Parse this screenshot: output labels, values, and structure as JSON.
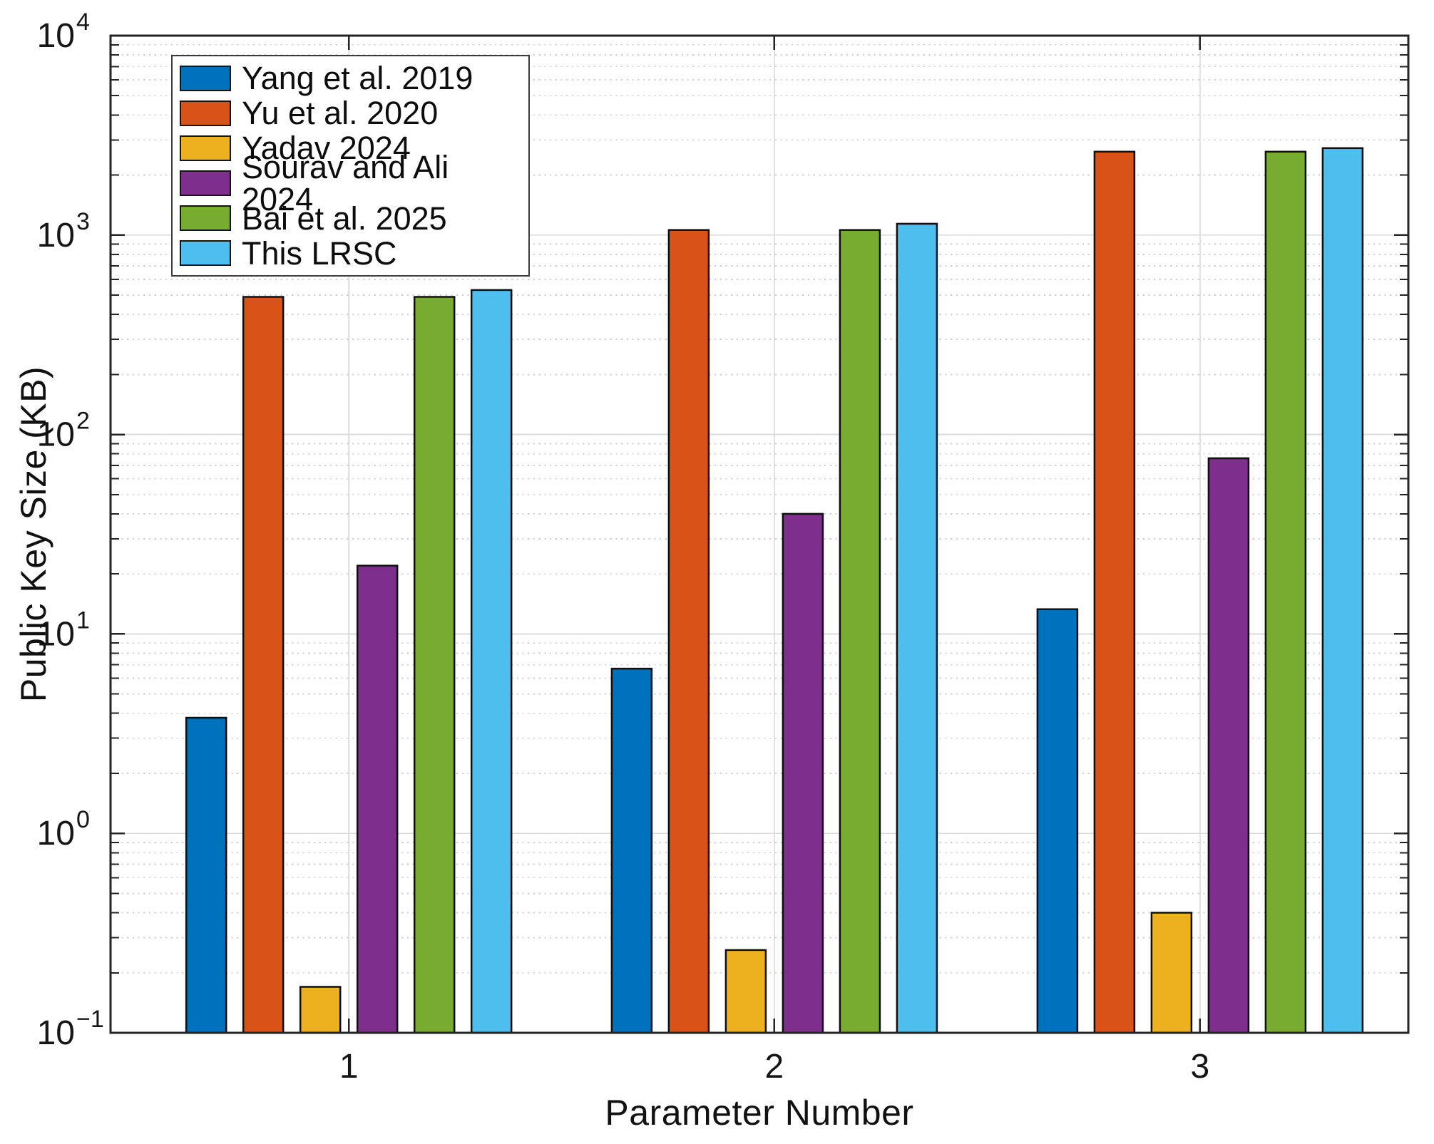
{
  "chart_data": {
    "type": "bar",
    "title": "",
    "xlabel": "Parameter Number",
    "ylabel": "Public Key Size (KB)",
    "categories": [
      "1",
      "2",
      "3"
    ],
    "y_scale": "log",
    "ylim": [
      0.1,
      10000
    ],
    "y_tick_exponents": [
      -1,
      0,
      1,
      2,
      3,
      4
    ],
    "grid": {
      "major": true,
      "minor_dotted": true,
      "x_gridlines_at_groups": true
    },
    "legend_position": "upper-left",
    "legend_entries": [
      "Yang et al. 2019",
      "Yu et al. 2020",
      "Yadav 2024",
      "Sourav and Ali 2024",
      "Bai et al. 2025",
      "This LRSC"
    ],
    "series": [
      {
        "name": "Yang et al. 2019",
        "color": "#0072BD",
        "values": [
          3.8,
          6.7,
          13.3
        ]
      },
      {
        "name": "Yu et al. 2020",
        "color": "#D95319",
        "values": [
          490,
          1060,
          2620
        ]
      },
      {
        "name": "Yadav 2024",
        "color": "#EDB120",
        "values": [
          0.17,
          0.26,
          0.4
        ]
      },
      {
        "name": "Sourav and Ali 2024",
        "color": "#7E2F8E",
        "values": [
          22,
          40,
          76
        ]
      },
      {
        "name": "Bai et al. 2025",
        "color": "#77AC30",
        "values": [
          490,
          1060,
          2620
        ]
      },
      {
        "name": "This LRSC",
        "color": "#4DBEEE",
        "values": [
          530,
          1140,
          2730
        ]
      }
    ],
    "colors": {
      "bar_edge": "#0f0f0f",
      "axis_box": "#242424",
      "major_grid": "#dbdbdb",
      "minor_grid": "#cfcfcf",
      "x_grid": "#e2e2e2",
      "tick_text": "#161616",
      "background": "#ffffff"
    }
  }
}
